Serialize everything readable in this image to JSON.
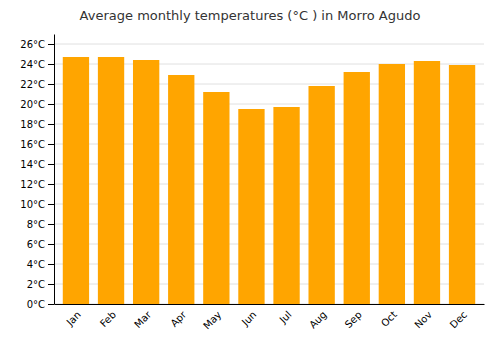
{
  "chart_data": {
    "type": "bar",
    "title": "Average monthly temperatures (°C ) in Morro Agudo",
    "categories": [
      "Jan",
      "Feb",
      "Mar",
      "Apr",
      "May",
      "Jun",
      "Jul",
      "Aug",
      "Sep",
      "Oct",
      "Nov",
      "Dec"
    ],
    "values": [
      24.7,
      24.7,
      24.4,
      22.9,
      21.2,
      19.5,
      19.7,
      21.8,
      23.2,
      24.0,
      24.3,
      23.9
    ],
    "color": "#FFA500",
    "ylim": [
      0,
      27
    ],
    "yticks": [
      {
        "value": 0,
        "label": "0°C"
      },
      {
        "value": 2,
        "label": "2°C"
      },
      {
        "value": 4,
        "label": "4°C"
      },
      {
        "value": 6,
        "label": "6°C"
      },
      {
        "value": 8,
        "label": "8°C"
      },
      {
        "value": 10,
        "label": "10°C"
      },
      {
        "value": 12,
        "label": "12°C"
      },
      {
        "value": 14,
        "label": "14°C"
      },
      {
        "value": 16,
        "label": "16°C"
      },
      {
        "value": 18,
        "label": "18°C"
      },
      {
        "value": 20,
        "label": "20°C"
      },
      {
        "value": 22,
        "label": "22°C"
      },
      {
        "value": 24,
        "label": "24°C"
      },
      {
        "value": 26,
        "label": "26°C"
      }
    ],
    "grid": true
  }
}
